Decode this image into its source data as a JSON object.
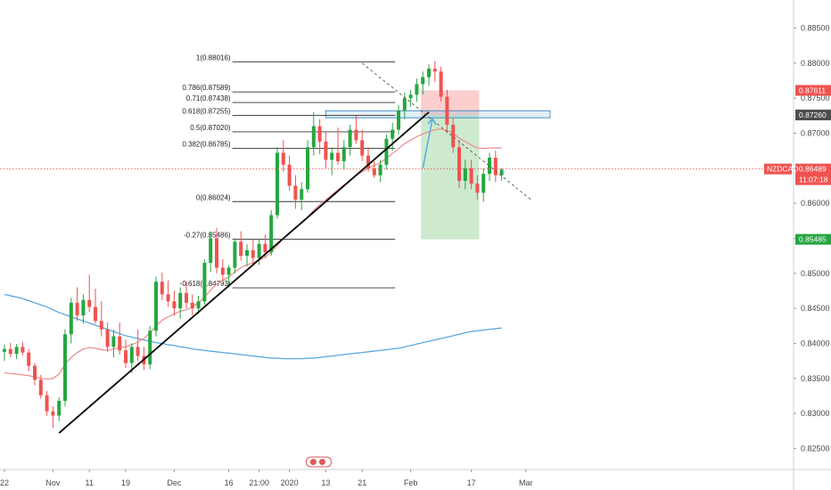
{
  "chart_data": {
    "type": "candlestick",
    "symbol": "NZDCAD",
    "countdown": "11:07:18",
    "ylim": [
      0.822,
      0.8885
    ],
    "y_ticks": [
      "0.88500",
      "0.88000",
      "0.87500",
      "0.87000",
      "0.86500",
      "0.86000",
      "0.85500",
      "0.85000",
      "0.84500",
      "0.84000",
      "0.83500",
      "0.83000",
      "0.82500"
    ],
    "x_ticks": [
      {
        "label": "22",
        "i": 0
      },
      {
        "label": "Nov",
        "i": 8
      },
      {
        "label": "11",
        "i": 14
      },
      {
        "label": "19",
        "i": 20
      },
      {
        "label": "Dec",
        "i": 28
      },
      {
        "label": "16",
        "i": 37
      },
      {
        "label": "21:00",
        "i": 42
      },
      {
        "label": "2020",
        "i": 47
      },
      {
        "label": "13",
        "i": 53
      },
      {
        "label": "21",
        "i": 59
      },
      {
        "label": "Feb",
        "i": 67
      },
      {
        "label": "17",
        "i": 77
      },
      {
        "label": "Mar",
        "i": 86
      }
    ],
    "current_price": {
      "value": 0.86489,
      "label": "0.86489",
      "color": "#ef5350"
    },
    "price_tags": [
      {
        "value": 0.87611,
        "label": "0.87611",
        "color": "#ef5350"
      },
      {
        "value": 0.8726,
        "label": "0.87260",
        "color": "#4d4d4d"
      },
      {
        "value": 0.85485,
        "label": "0.85485",
        "color": "#26a641"
      }
    ],
    "fib_levels": [
      {
        "label": "1(0.88016)",
        "value": 0.88016
      },
      {
        "label": "0.786(0.87589)",
        "value": 0.87589
      },
      {
        "label": "0.71(0.87438)",
        "value": 0.87438
      },
      {
        "label": "0.618(0.87255)",
        "value": 0.87255
      },
      {
        "label": "0.5(0.87020)",
        "value": 0.8702
      },
      {
        "label": "0.382(0.86785)",
        "value": 0.86785
      },
      {
        "label": "0(0.86024)",
        "value": 0.86024
      },
      {
        "label": "-0.27(0.85486)",
        "value": 0.85486
      },
      {
        "label": "-0.618(0.84793)",
        "value": 0.84793
      }
    ],
    "fib_range": {
      "i_start": 37,
      "i_end": 64
    },
    "candles": [
      [
        0.8388,
        0.8398,
        0.8375,
        0.8392
      ],
      [
        0.8392,
        0.8401,
        0.838,
        0.8385
      ],
      [
        0.8385,
        0.8399,
        0.8378,
        0.8395
      ],
      [
        0.8395,
        0.8402,
        0.8383,
        0.8387
      ],
      [
        0.8387,
        0.8392,
        0.836,
        0.8368
      ],
      [
        0.8368,
        0.8372,
        0.834,
        0.8348
      ],
      [
        0.8348,
        0.8355,
        0.8321,
        0.8326
      ],
      [
        0.8326,
        0.8332,
        0.8297,
        0.8303
      ],
      [
        0.8303,
        0.831,
        0.8279,
        0.8297
      ],
      [
        0.8297,
        0.8323,
        0.8289,
        0.8318
      ],
      [
        0.8318,
        0.842,
        0.831,
        0.8413
      ],
      [
        0.8413,
        0.8465,
        0.84,
        0.8458
      ],
      [
        0.8458,
        0.848,
        0.8432,
        0.844
      ],
      [
        0.844,
        0.847,
        0.8428,
        0.8462
      ],
      [
        0.8462,
        0.8498,
        0.8445,
        0.8452
      ],
      [
        0.8452,
        0.8478,
        0.8428,
        0.8432
      ],
      [
        0.8432,
        0.846,
        0.841,
        0.842
      ],
      [
        0.842,
        0.843,
        0.8388,
        0.8395
      ],
      [
        0.8395,
        0.842,
        0.838,
        0.841
      ],
      [
        0.841,
        0.843,
        0.8384,
        0.839
      ],
      [
        0.839,
        0.8405,
        0.8365,
        0.8372
      ],
      [
        0.8372,
        0.84,
        0.8358,
        0.8395
      ],
      [
        0.8395,
        0.842,
        0.8375,
        0.8382
      ],
      [
        0.8382,
        0.8395,
        0.8362,
        0.837
      ],
      [
        0.837,
        0.8425,
        0.8363,
        0.8418
      ],
      [
        0.8418,
        0.8495,
        0.841,
        0.8488
      ],
      [
        0.8488,
        0.8501,
        0.8462,
        0.847
      ],
      [
        0.847,
        0.849,
        0.8452,
        0.846
      ],
      [
        0.846,
        0.8475,
        0.844,
        0.845
      ],
      [
        0.845,
        0.848,
        0.8435,
        0.8472
      ],
      [
        0.8472,
        0.8488,
        0.845,
        0.8458
      ],
      [
        0.8458,
        0.847,
        0.844,
        0.845
      ],
      [
        0.845,
        0.8468,
        0.8442,
        0.846
      ],
      [
        0.846,
        0.852,
        0.8455,
        0.8515
      ],
      [
        0.8515,
        0.856,
        0.8502,
        0.855
      ],
      [
        0.855,
        0.8565,
        0.85,
        0.8508
      ],
      [
        0.8508,
        0.852,
        0.849,
        0.8498
      ],
      [
        0.8498,
        0.8512,
        0.8482,
        0.8508
      ],
      [
        0.8508,
        0.855,
        0.85,
        0.8545
      ],
      [
        0.8545,
        0.856,
        0.8518,
        0.8525
      ],
      [
        0.8525,
        0.8542,
        0.851,
        0.8533
      ],
      [
        0.8533,
        0.8548,
        0.851,
        0.8522
      ],
      [
        0.8522,
        0.8548,
        0.8512,
        0.8542
      ],
      [
        0.8542,
        0.8555,
        0.8522,
        0.853
      ],
      [
        0.853,
        0.859,
        0.8525,
        0.8583
      ],
      [
        0.8583,
        0.868,
        0.8578,
        0.8672
      ],
      [
        0.8672,
        0.869,
        0.8645,
        0.8655
      ],
      [
        0.8655,
        0.8668,
        0.8618,
        0.8625
      ],
      [
        0.8625,
        0.864,
        0.8592,
        0.8605
      ],
      [
        0.8605,
        0.863,
        0.859,
        0.862
      ],
      [
        0.862,
        0.869,
        0.8615,
        0.868
      ],
      [
        0.868,
        0.873,
        0.8668,
        0.871
      ],
      [
        0.871,
        0.872,
        0.867,
        0.8688
      ],
      [
        0.8688,
        0.8702,
        0.865,
        0.8662
      ],
      [
        0.8662,
        0.868,
        0.864,
        0.8672
      ],
      [
        0.8672,
        0.8708,
        0.8655,
        0.866
      ],
      [
        0.866,
        0.869,
        0.8648,
        0.868
      ],
      [
        0.868,
        0.8712,
        0.8668,
        0.8705
      ],
      [
        0.8705,
        0.8725,
        0.8685,
        0.869
      ],
      [
        0.869,
        0.8705,
        0.866,
        0.8668
      ],
      [
        0.8668,
        0.868,
        0.8645,
        0.865
      ],
      [
        0.865,
        0.866,
        0.8636,
        0.864
      ],
      [
        0.864,
        0.8662,
        0.863,
        0.8655
      ],
      [
        0.8655,
        0.8698,
        0.8648,
        0.8692
      ],
      [
        0.8692,
        0.8715,
        0.8675,
        0.8705
      ],
      [
        0.8705,
        0.874,
        0.8698,
        0.8732
      ],
      [
        0.8732,
        0.8758,
        0.872,
        0.875
      ],
      [
        0.875,
        0.8762,
        0.8738,
        0.8755
      ],
      [
        0.8755,
        0.8778,
        0.8745,
        0.877
      ],
      [
        0.877,
        0.8788,
        0.8755,
        0.878
      ],
      [
        0.878,
        0.8798,
        0.8768,
        0.8792
      ],
      [
        0.8792,
        0.8803,
        0.8773,
        0.8788
      ],
      [
        0.8788,
        0.8795,
        0.8745,
        0.8752
      ],
      [
        0.8752,
        0.8762,
        0.87,
        0.8712
      ],
      [
        0.8712,
        0.8722,
        0.8672,
        0.868
      ],
      [
        0.868,
        0.869,
        0.8622,
        0.8632
      ],
      [
        0.8632,
        0.8662,
        0.862,
        0.865
      ],
      [
        0.865,
        0.8662,
        0.862,
        0.8628
      ],
      [
        0.8628,
        0.864,
        0.8605,
        0.8615
      ],
      [
        0.8615,
        0.865,
        0.8602,
        0.8642
      ],
      [
        0.8642,
        0.8672,
        0.8632,
        0.8665
      ],
      [
        0.8665,
        0.8675,
        0.863,
        0.864
      ],
      [
        0.864,
        0.865,
        0.8632,
        0.8648
      ]
    ],
    "ema_short": [
      0.8358,
      0.8357,
      0.8356,
      0.8355,
      0.8354,
      0.8352,
      0.835,
      0.8349,
      0.835,
      0.8356,
      0.837,
      0.838,
      0.8387,
      0.8392,
      0.8394,
      0.8393,
      0.8391,
      0.839,
      0.8392,
      0.8394,
      0.8395,
      0.8398,
      0.8402,
      0.8407,
      0.8415,
      0.8425,
      0.8433,
      0.8438,
      0.8442,
      0.8446,
      0.8448,
      0.8452,
      0.8458,
      0.8466,
      0.8476,
      0.8485,
      0.849,
      0.8495,
      0.8502,
      0.8508,
      0.8512,
      0.8515,
      0.8519,
      0.8523,
      0.853,
      0.854,
      0.855,
      0.8558,
      0.8565,
      0.8572,
      0.858,
      0.859,
      0.8598,
      0.8605,
      0.8612,
      0.8619,
      0.8626,
      0.8633,
      0.864,
      0.8645,
      0.865,
      0.8654,
      0.8658,
      0.8664,
      0.8671,
      0.8678,
      0.8685,
      0.869,
      0.8695,
      0.8699,
      0.8702,
      0.8705,
      0.8706,
      0.8704,
      0.87,
      0.8693,
      0.8688,
      0.8683,
      0.8679,
      0.8678,
      0.8679,
      0.8679,
      0.8679
    ],
    "ema_long": [
      0.847,
      0.8468,
      0.8466,
      0.8464,
      0.8461,
      0.8458,
      0.8455,
      0.8452,
      0.8448,
      0.8444,
      0.8441,
      0.8438,
      0.8435,
      0.8432,
      0.8429,
      0.8426,
      0.8423,
      0.842,
      0.8417,
      0.8414,
      0.8411,
      0.8409,
      0.8407,
      0.8405,
      0.8403,
      0.8401,
      0.84,
      0.8398,
      0.8397,
      0.8395,
      0.8394,
      0.8392,
      0.8391,
      0.839,
      0.8389,
      0.8388,
      0.8387,
      0.8386,
      0.8385,
      0.8384,
      0.8383,
      0.8382,
      0.8381,
      0.838,
      0.8379,
      0.8379,
      0.8378,
      0.8378,
      0.8378,
      0.8378,
      0.8379,
      0.8379,
      0.838,
      0.8381,
      0.8382,
      0.8383,
      0.8384,
      0.8385,
      0.8386,
      0.8387,
      0.8388,
      0.8389,
      0.839,
      0.8391,
      0.8392,
      0.8393,
      0.8395,
      0.8397,
      0.8399,
      0.8401,
      0.8403,
      0.8405,
      0.8407,
      0.8409,
      0.8411,
      0.8413,
      0.8415,
      0.8417,
      0.8418,
      0.8419,
      0.842,
      0.8421,
      0.8422
    ],
    "trendline": {
      "p1": {
        "i": 9,
        "price": 0.8272
      },
      "p2": {
        "i": 70,
        "price": 0.873
      }
    },
    "dashed_line": {
      "p1": {
        "i": 59,
        "price": 0.88
      },
      "p2": {
        "i": 87,
        "price": 0.8604
      }
    },
    "zone_box": {
      "i_start": 53,
      "i_end": 90,
      "top": 0.8732,
      "bottom": 0.8722
    },
    "position": {
      "i_start": 69,
      "i_end": 78,
      "entry": 0.8726,
      "stop": 0.87611,
      "target": 0.85485
    },
    "projection_arrow": {
      "p1": {
        "i": 69,
        "price": 0.865
      },
      "p2": {
        "i": 70,
        "price": 0.8721
      }
    },
    "colors": {
      "up": "#26a641",
      "down": "#ef5350",
      "ema_short": "#ef8a8a",
      "ema_long": "#4da3e0",
      "zone": "#5aa9e6"
    }
  }
}
